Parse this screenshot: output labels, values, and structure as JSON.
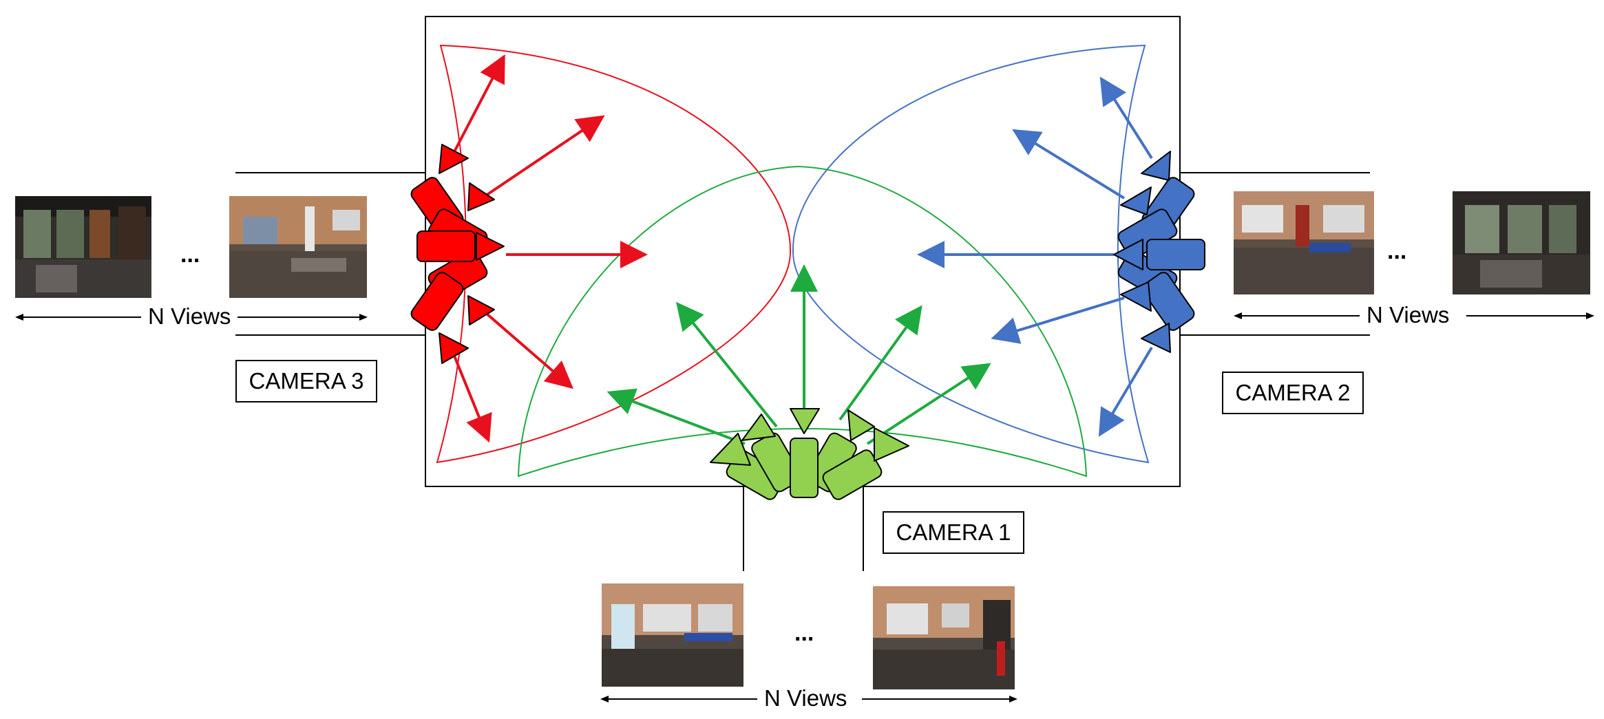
{
  "cameras": {
    "camera1": {
      "label": "CAMERA 1",
      "color": "#92d050",
      "ray_color": "#1faa3f"
    },
    "camera2": {
      "label": "CAMERA 2",
      "color": "#4472c4",
      "ray_color": "#4472c4"
    },
    "camera3": {
      "label": "CAMERA 3",
      "color": "#ff0000",
      "ray_color": "#e8101e"
    }
  },
  "views": {
    "camera1": {
      "label": "N Views",
      "ellipsis": "..."
    },
    "camera2": {
      "label": "N Views",
      "ellipsis": "..."
    },
    "camera3": {
      "label": "N Views",
      "ellipsis": "..."
    }
  }
}
